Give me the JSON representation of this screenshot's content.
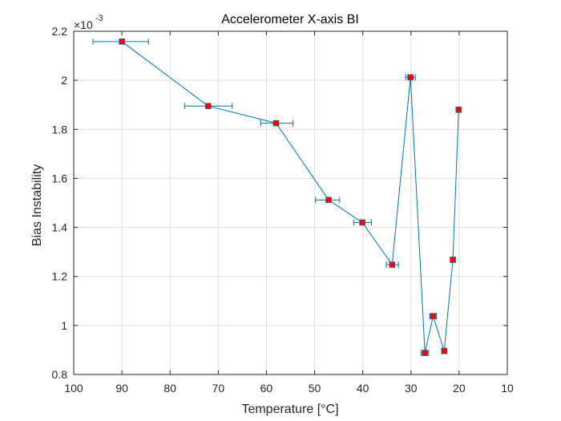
{
  "chart_data": {
    "type": "line",
    "title": "Accelerometer X-axis BI",
    "xlabel": "Temperature [°C]",
    "ylabel": "Bias Instability",
    "exponent_label": "×10",
    "exponent_power": "-3",
    "xlim": [
      100,
      10
    ],
    "x_reversed": true,
    "ylim": [
      0.8,
      2.2
    ],
    "x_ticks": [
      100,
      90,
      80,
      70,
      60,
      50,
      40,
      30,
      20,
      10
    ],
    "x_tick_labels": [
      "100",
      "90",
      "80",
      "70",
      "60",
      "50",
      "40",
      "30",
      "20",
      "10"
    ],
    "y_ticks": [
      0.8,
      1.0,
      1.2,
      1.4,
      1.6,
      1.8,
      2.0,
      2.2
    ],
    "y_tick_labels": [
      "0.8",
      "1",
      "1.2",
      "1.4",
      "1.6",
      "1.8",
      "2",
      "2.2"
    ],
    "grid": true,
    "colors": {
      "line": "#0072bd",
      "marker": "#ff0000",
      "axis": "#262626",
      "grid": "#dfdfdf"
    },
    "series": [
      {
        "points": [
          {
            "x": 90.0,
            "y": 2.158,
            "xerr_low": 6.0,
            "xerr_high": 5.5
          },
          {
            "x": 72.1,
            "y": 1.895,
            "xerr_low": 4.9,
            "xerr_high": 5.0
          },
          {
            "x": 58.0,
            "y": 1.825,
            "xerr_low": 3.2,
            "xerr_high": 3.5
          },
          {
            "x": 47.1,
            "y": 1.512,
            "xerr_low": 2.7,
            "xerr_high": 2.3
          },
          {
            "x": 40.1,
            "y": 1.42,
            "xerr_low": 1.8,
            "xerr_high": 1.9
          },
          {
            "x": 33.9,
            "y": 1.248,
            "xerr_low": 1.2,
            "xerr_high": 1.3
          },
          {
            "x": 30.1,
            "y": 2.012,
            "xerr_low": 1.0,
            "xerr_high": 1.0
          },
          {
            "x": 27.1,
            "y": 0.888,
            "xerr_low": 0.8,
            "xerr_high": 0.8
          },
          {
            "x": 25.4,
            "y": 1.038,
            "xerr_low": 0.7,
            "xerr_high": 0.7
          },
          {
            "x": 23.1,
            "y": 0.896,
            "xerr_low": 0.5,
            "xerr_high": 0.5
          },
          {
            "x": 21.3,
            "y": 1.268,
            "xerr_low": 0.5,
            "xerr_high": 0.5
          },
          {
            "x": 20.1,
            "y": 1.88,
            "xerr_low": 0.4,
            "xerr_high": 0.4
          }
        ]
      }
    ]
  }
}
